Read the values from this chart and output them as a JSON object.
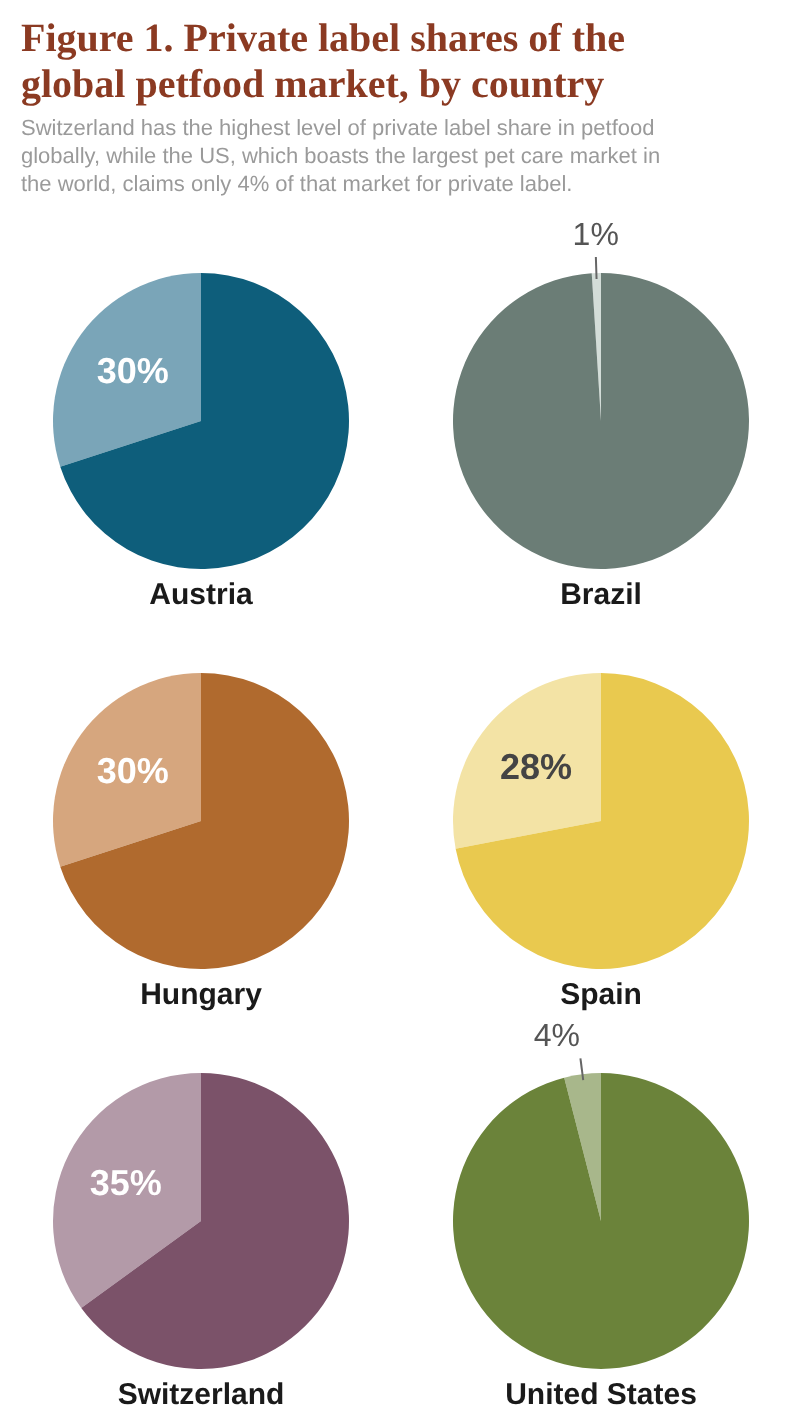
{
  "chart_data": [
    {
      "type": "pie",
      "title": "Figure 1. Private label shares of the global petfood market, by country",
      "subtitle": "Switzerland has the highest level of private label share in petfood globally, while the US, which boasts the largest pet care market in the world, claims only 4% of that market for private label.",
      "xlabel": "Austria",
      "categories": [
        null,
        null
      ],
      "values": [
        30,
        70
      ],
      "colors": [
        "#7aa5b8",
        "#0e5e7b"
      ],
      "value_labels": [
        "30%",
        null
      ]
    },
    {
      "type": "pie",
      "xlabel": "Brazil",
      "categories": [
        null,
        null
      ],
      "values": [
        1,
        99
      ],
      "colors": [
        "#d3ddd8",
        "#6b7d76"
      ],
      "value_labels": [
        "1%",
        null
      ]
    },
    {
      "type": "pie",
      "xlabel": "Hungary",
      "categories": [
        null,
        null
      ],
      "values": [
        30,
        70
      ],
      "colors": [
        "#d6a67e",
        "#b06a2e"
      ],
      "value_labels": [
        "30%",
        null
      ]
    },
    {
      "type": "pie",
      "xlabel": "Spain",
      "categories": [
        null,
        null
      ],
      "values": [
        28,
        72
      ],
      "colors": [
        "#f3e3a5",
        "#e9c94f"
      ],
      "value_labels": [
        "28%",
        null
      ]
    },
    {
      "type": "pie",
      "xlabel": "Switzerland",
      "categories": [
        null,
        null
      ],
      "values": [
        35,
        65
      ],
      "colors": [
        "#b39aa8",
        "#7b5269"
      ],
      "value_labels": [
        "35%",
        null
      ]
    },
    {
      "type": "pie",
      "xlabel": "United States",
      "categories": [
        null,
        null
      ],
      "values": [
        4,
        96
      ],
      "colors": [
        "#a8b78b",
        "#6b833a"
      ],
      "value_labels": [
        "4%",
        null
      ]
    }
  ]
}
